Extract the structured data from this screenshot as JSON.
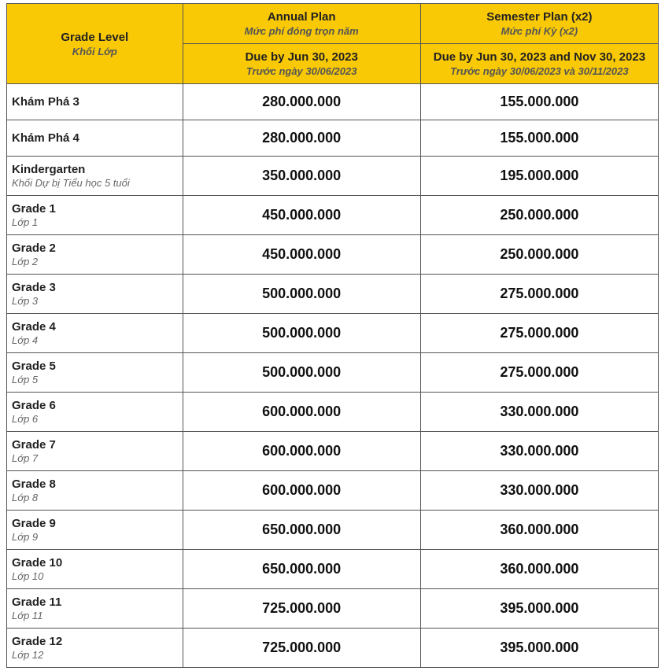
{
  "table": {
    "type": "table",
    "colors": {
      "header_bg": "#f9c905",
      "border": "#555555",
      "text_main": "#222222",
      "text_sub": "#555555",
      "text_price": "#111111",
      "row_bg": "#ffffff"
    },
    "fonts": {
      "header_main_size": 15,
      "header_sub_size": 13,
      "grade_main_size": 15,
      "grade_sub_size": 13,
      "price_size": 18
    },
    "columns": [
      {
        "width_pct": 27
      },
      {
        "width_pct": 36.5
      },
      {
        "width_pct": 36.5
      }
    ],
    "header": {
      "grade": {
        "main": "Grade Level",
        "sub": "Khối Lớp"
      },
      "annual": {
        "main": "Annual Plan",
        "sub": "Mức phí đóng trọn năm"
      },
      "semester": {
        "main": "Semester Plan (x2)",
        "sub": "Mức phí Kỳ (x2)"
      },
      "annual_due": {
        "main": "Due by Jun 30, 2023",
        "sub": "Trước ngày 30/06/2023"
      },
      "semester_due": {
        "main": "Due by Jun 30, 2023 and Nov 30, 2023",
        "sub": "Trước ngày 30/06/2023 và 30/11/2023"
      }
    },
    "rows": [
      {
        "grade_main": "Khám Phá 3",
        "grade_sub": "",
        "annual": "280.000.000",
        "semester": "155.000.000"
      },
      {
        "grade_main": "Khám Phá 4",
        "grade_sub": "",
        "annual": "280.000.000",
        "semester": "155.000.000"
      },
      {
        "grade_main": "Kindergarten",
        "grade_sub": "Khối Dự bị Tiểu học 5 tuổi",
        "annual": "350.000.000",
        "semester": "195.000.000"
      },
      {
        "grade_main": "Grade 1",
        "grade_sub": "Lớp 1",
        "annual": "450.000.000",
        "semester": "250.000.000"
      },
      {
        "grade_main": "Grade 2",
        "grade_sub": "Lớp 2",
        "annual": "450.000.000",
        "semester": "250.000.000"
      },
      {
        "grade_main": "Grade 3",
        "grade_sub": "Lớp 3",
        "annual": "500.000.000",
        "semester": "275.000.000"
      },
      {
        "grade_main": "Grade 4",
        "grade_sub": "Lớp 4",
        "annual": "500.000.000",
        "semester": "275.000.000"
      },
      {
        "grade_main": "Grade 5",
        "grade_sub": "Lớp 5",
        "annual": "500.000.000",
        "semester": "275.000.000"
      },
      {
        "grade_main": "Grade 6",
        "grade_sub": "Lớp 6",
        "annual": "600.000.000",
        "semester": "330.000.000"
      },
      {
        "grade_main": "Grade 7",
        "grade_sub": "Lớp 7",
        "annual": "600.000.000",
        "semester": "330.000.000"
      },
      {
        "grade_main": "Grade 8",
        "grade_sub": "Lớp 8",
        "annual": "600.000.000",
        "semester": "330.000.000"
      },
      {
        "grade_main": "Grade 9",
        "grade_sub": "Lớp 9",
        "annual": "650.000.000",
        "semester": "360.000.000"
      },
      {
        "grade_main": "Grade 10",
        "grade_sub": "Lớp 10",
        "annual": "650.000.000",
        "semester": "360.000.000"
      },
      {
        "grade_main": "Grade 11",
        "grade_sub": "Lớp 11",
        "annual": "725.000.000",
        "semester": "395.000.000"
      },
      {
        "grade_main": "Grade 12",
        "grade_sub": "Lớp 12",
        "annual": "725.000.000",
        "semester": "395.000.000"
      }
    ]
  }
}
